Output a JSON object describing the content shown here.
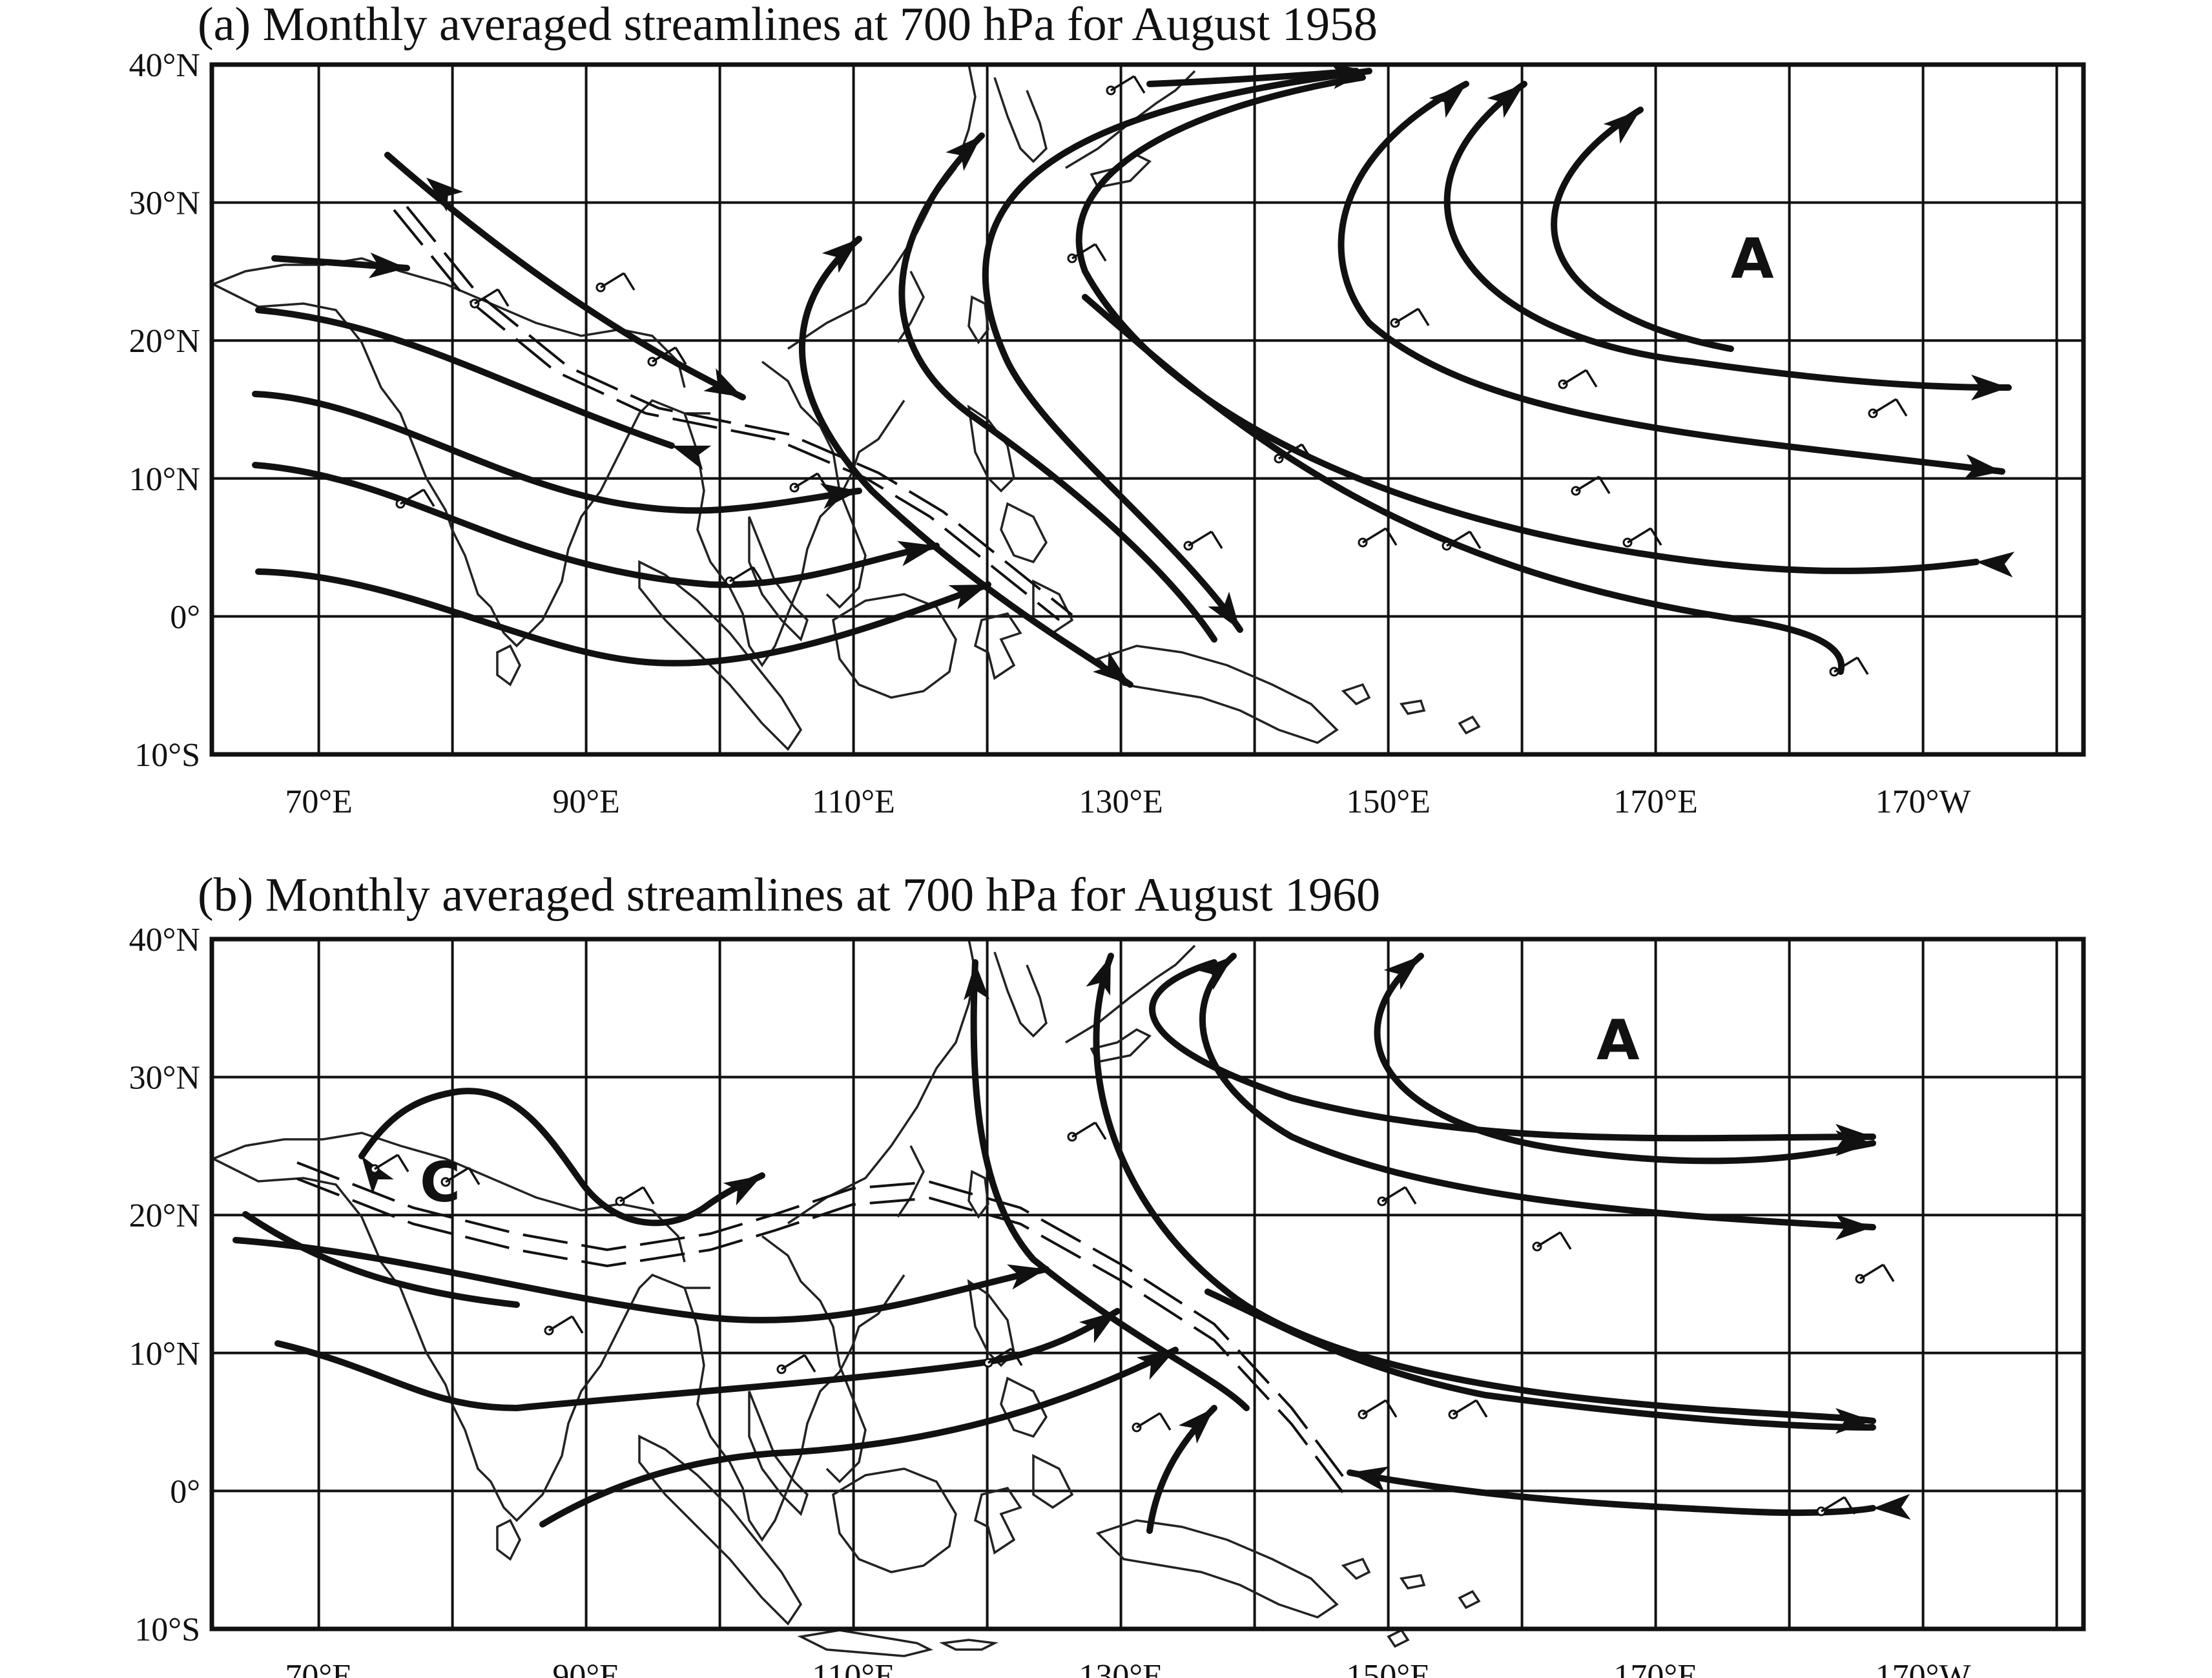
{
  "map_data": {
    "lon_range": [
      62,
      202
    ],
    "lat_range": [
      -10,
      40
    ],
    "meridian_spacing_deg": 10,
    "parallel_spacing_deg": 10,
    "lat_ticks": [
      "40°N",
      "30°N",
      "20°N",
      "10°N",
      "0°",
      "10°S"
    ],
    "lon_ticks": [
      "70°E",
      "90°E",
      "110°E",
      "130°E",
      "150°E",
      "170°E",
      "170°W"
    ],
    "panels": [
      {
        "id": "a",
        "title": "(a) Monthly averaged streamlines at 700 hPa for August 1958",
        "anticyclone_label": "A",
        "cyclone_label": ""
      },
      {
        "id": "b",
        "title": "(b) Monthly averaged streamlines at 700 hPa for August 1960",
        "anticyclone_label": "A",
        "cyclone_label": "C"
      }
    ]
  }
}
